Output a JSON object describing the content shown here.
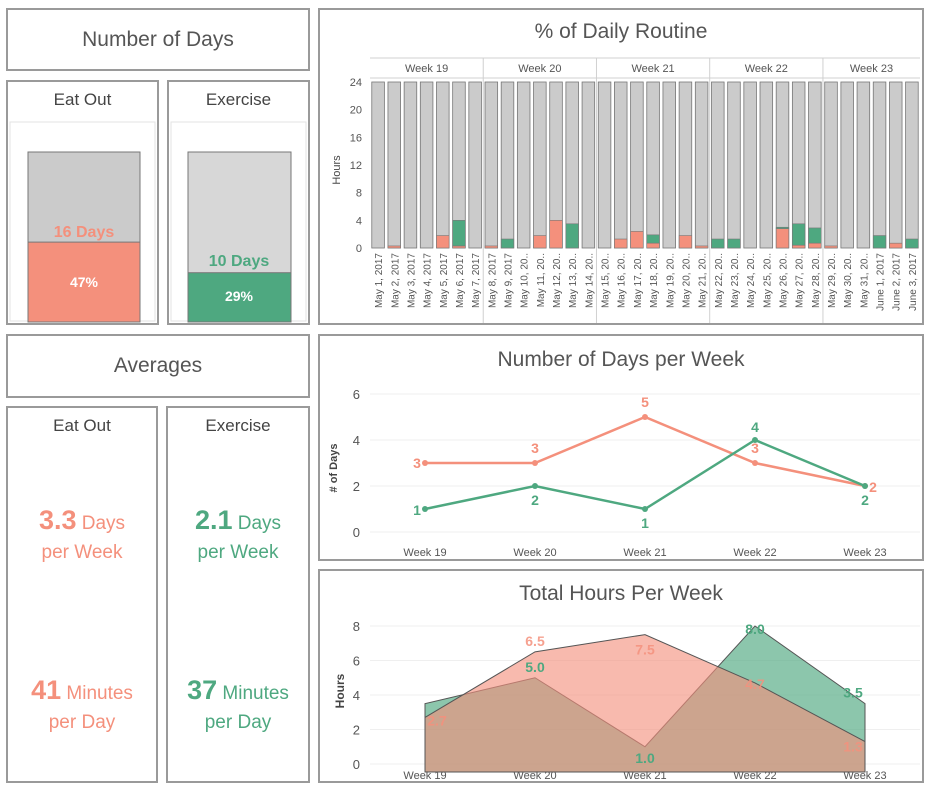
{
  "colors": {
    "eat_out": "#f4907c",
    "exercise": "#4ea880",
    "other": "#cbcbcb"
  },
  "number_of_days": {
    "title": "Number of Days",
    "eat_out": {
      "label": "Eat Out",
      "days_text": "16 Days",
      "percent_text": "47%",
      "fraction": 0.47
    },
    "exercise": {
      "label": "Exercise",
      "days_text": "10 Days",
      "percent_text": "29%",
      "fraction": 0.29
    }
  },
  "averages": {
    "title": "Averages",
    "eat_out": {
      "label": "Eat Out",
      "days_value": "3.3",
      "days_unit": "Days",
      "days_suffix": "per Week",
      "minutes_value": "41",
      "minutes_unit": "Minutes",
      "minutes_suffix": "per Day"
    },
    "exercise": {
      "label": "Exercise",
      "days_value": "2.1",
      "days_unit": "Days",
      "days_suffix": "per Week",
      "minutes_value": "37",
      "minutes_unit": "Minutes",
      "minutes_suffix": "per Day"
    }
  },
  "chart_data": [
    {
      "type": "bar",
      "title": "% of Daily Routine",
      "ylabel": "Hours",
      "ylim": [
        0,
        24
      ],
      "yticks": [
        0,
        4,
        8,
        12,
        16,
        20,
        24
      ],
      "weeks": [
        {
          "label": "Week 19",
          "count": 7
        },
        {
          "label": "Week 20",
          "count": 7
        },
        {
          "label": "Week 21",
          "count": 7
        },
        {
          "label": "Week 22",
          "count": 7
        },
        {
          "label": "Week 23",
          "count": 6
        }
      ],
      "categories": [
        "May 1, 2017",
        "May 2, 2017",
        "May 3, 2017",
        "May 4, 2017",
        "May 5, 2017",
        "May 6, 2017",
        "May 7, 2017",
        "May 8, 2017",
        "May 9, 2017",
        "May 10, 20..",
        "May 11, 20..",
        "May 12, 20..",
        "May 13, 20..",
        "May 14, 20..",
        "May 15, 20..",
        "May 16, 20..",
        "May 17, 20..",
        "May 18, 20..",
        "May 19, 20..",
        "May 20, 20..",
        "May 21, 20..",
        "May 22, 20..",
        "May 23, 20..",
        "May 24, 20..",
        "May 25, 20..",
        "May 26, 20..",
        "May 27, 20..",
        "May 28, 20..",
        "May 29, 20..",
        "May 30, 20..",
        "May 31, 20..",
        "June 1, 2017",
        "June 2, 2017",
        "June 3, 2017"
      ],
      "series": [
        {
          "name": "Eat Out",
          "values": [
            0,
            0.3,
            0,
            0,
            1.8,
            0.3,
            0,
            0.3,
            0,
            0,
            1.8,
            4,
            0,
            0,
            0,
            1.3,
            2.4,
            0.7,
            0,
            1.8,
            0.3,
            0,
            0,
            0,
            0,
            2.8,
            0.4,
            0.7,
            0.3,
            0,
            0,
            0,
            0.7,
            0
          ]
        },
        {
          "name": "Exercise",
          "values": [
            0,
            0,
            0,
            0,
            0,
            3.7,
            0,
            0,
            1.3,
            0,
            0,
            0,
            3.5,
            0,
            0,
            0,
            0,
            1.2,
            0,
            0,
            0,
            1.3,
            1.3,
            0,
            0,
            0.2,
            3.1,
            2.2,
            0,
            0,
            0,
            1.8,
            0,
            1.3
          ]
        }
      ]
    },
    {
      "type": "line",
      "title": "Number of Days per Week",
      "ylabel": "# of Days",
      "ylim": [
        0,
        6
      ],
      "yticks": [
        0,
        2,
        4,
        6
      ],
      "categories": [
        "Week 19",
        "Week 20",
        "Week 21",
        "Week 22",
        "Week 23"
      ],
      "series": [
        {
          "name": "Eat Out",
          "values": [
            3,
            3,
            5,
            3,
            2
          ]
        },
        {
          "name": "Exercise",
          "values": [
            1,
            2,
            1,
            4,
            2
          ]
        }
      ]
    },
    {
      "type": "area",
      "title": "Total Hours Per Week",
      "ylabel": "Hours",
      "ylim": [
        0,
        8
      ],
      "yticks": [
        0,
        2,
        4,
        6,
        8
      ],
      "categories": [
        "Week 19",
        "Week 20",
        "Week 21",
        "Week 22",
        "Week 23"
      ],
      "series": [
        {
          "name": "Eat Out",
          "values": [
            2.7,
            6.5,
            7.5,
            4.7,
            1.3
          ],
          "labels": [
            "2.7",
            "6.5",
            "7.5",
            "4.7",
            "1.3"
          ]
        },
        {
          "name": "Exercise",
          "values": [
            3.5,
            5.0,
            1.0,
            8.0,
            3.5
          ],
          "labels": [
            "",
            "5.0",
            "1.0",
            "8.0",
            "3.5"
          ]
        }
      ]
    }
  ]
}
